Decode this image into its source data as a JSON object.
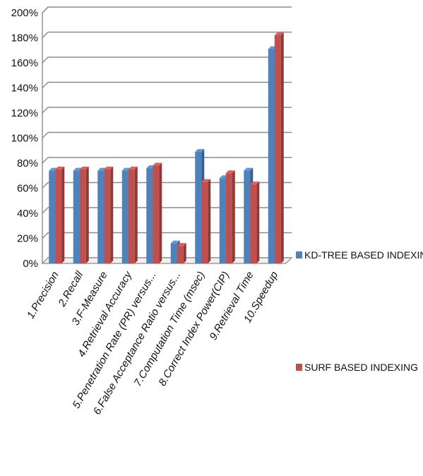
{
  "chart_data": {
    "type": "bar",
    "title": "",
    "xlabel": "",
    "ylabel": "",
    "ylim": [
      0,
      200
    ],
    "y_ticks": [
      "0%",
      "20%",
      "40%",
      "60%",
      "80%",
      "100%",
      "120%",
      "140%",
      "160%",
      "180%",
      "200%"
    ],
    "grid": true,
    "legend_position": "right",
    "categories": [
      "1.Precision",
      "2.Recall",
      "3.F-Measure",
      "4.Retrieval Accuracy",
      "5.Penetration Rate (PR) versus...",
      "6.False Acceptance Ratio versus...",
      "7.Computation Time (msec)",
      "8.Correct Index Power(CIP)",
      "9.Retrieval Time",
      "10.Speedup"
    ],
    "series": [
      {
        "name": "KD-TREE BASED INDEXING",
        "color": "#4f81bd",
        "values": [
          74,
          74,
          74,
          74,
          76,
          16,
          89,
          68,
          74,
          171
        ]
      },
      {
        "name": "SURF  BASED INDEXING",
        "color": "#c0504d",
        "values": [
          75,
          75,
          75,
          75,
          78,
          14,
          65,
          72,
          63,
          182
        ]
      }
    ]
  }
}
